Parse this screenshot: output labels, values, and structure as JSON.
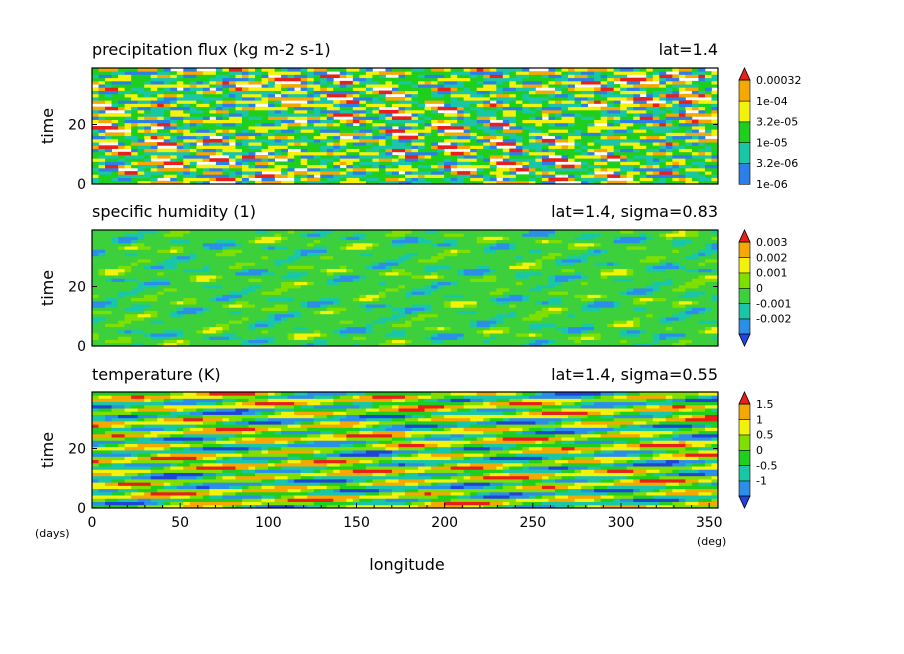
{
  "chart_data": [
    {
      "type": "heatmap",
      "title": "precipitation flux (kg m-2 s-1)",
      "annotation": "lat=1.4",
      "ylabel": "time",
      "xlim": [
        0,
        355
      ],
      "ylim": [
        0,
        39
      ],
      "yticks": [
        "0",
        "20"
      ],
      "colorbar": {
        "scale": "log",
        "levels": [
          "1e-06",
          "3.2e-06",
          "1e-05",
          "3.2e-05",
          "1e-04",
          "0.00032"
        ],
        "colors": [
          "#2b7fe8",
          "#19c7a8",
          "#1ecf1e",
          "#f2f20a",
          "#f5a800",
          "#e8201a"
        ],
        "extend": "max"
      }
    },
    {
      "type": "heatmap",
      "title": "specific humidity (1)",
      "annotation": "lat=1.4, sigma=0.83",
      "ylabel": "time",
      "xlim": [
        0,
        355
      ],
      "ylim": [
        0,
        39
      ],
      "yticks": [
        "0",
        "20"
      ],
      "colorbar": {
        "levels": [
          "-0.002",
          "-0.001",
          "0",
          "0.001",
          "0.002",
          "0.003"
        ],
        "colors": [
          "#2048e0",
          "#2b8fe8",
          "#19c7a8",
          "#3cd03c",
          "#7fe000",
          "#f2f20a",
          "#f5a800",
          "#e8201a"
        ],
        "extend": "both"
      }
    },
    {
      "type": "heatmap",
      "title": "temperature (K)",
      "annotation": "lat=1.4, sigma=0.55",
      "ylabel": "time",
      "xlabel": "longitude",
      "xlim": [
        0,
        355
      ],
      "ylim": [
        0,
        39
      ],
      "xticks": [
        "0",
        "50",
        "100",
        "150",
        "200",
        "250",
        "300",
        "350"
      ],
      "yticks": [
        "0",
        "20"
      ],
      "x_unit": "(deg)",
      "y_unit": "(days)",
      "colorbar": {
        "levels": [
          "-1",
          "-0.5",
          "0",
          "0.5",
          "1",
          "1.5"
        ],
        "colors": [
          "#1f44d8",
          "#2b8fe8",
          "#19c7a8",
          "#1ecf1e",
          "#7fe000",
          "#f2f20a",
          "#f5a800",
          "#e8201a"
        ],
        "extend": "both"
      }
    }
  ]
}
